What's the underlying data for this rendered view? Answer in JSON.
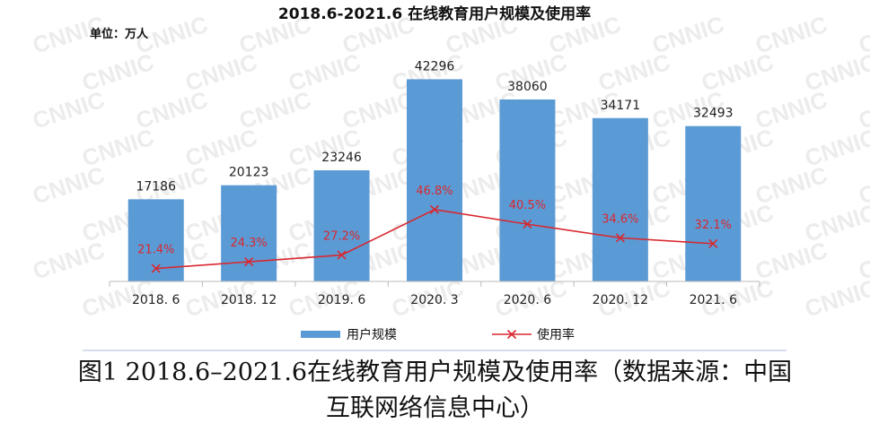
{
  "chart_data": {
    "type": "bar",
    "title": "2018.6-2021.6 在线教育用户规模及使用率",
    "unit_label": "单位：万人",
    "categories": [
      "2018. 6",
      "2018. 12",
      "2019. 6",
      "2020. 3",
      "2020. 6",
      "2020. 12",
      "2021. 6"
    ],
    "series": [
      {
        "name": "用户规模",
        "type": "bar",
        "values": [
          17186,
          20123,
          23246,
          42296,
          38060,
          34171,
          32493
        ],
        "labels": [
          "17186",
          "20123",
          "23246",
          "42296",
          "38060",
          "34171",
          "32493"
        ],
        "color": "#5b9bd5"
      },
      {
        "name": "使用率",
        "type": "line",
        "values": [
          21.4,
          24.3,
          27.2,
          46.8,
          40.5,
          34.6,
          32.1
        ],
        "labels": [
          "21.4%",
          "24.3%",
          "27.2%",
          "46.8%",
          "40.5%",
          "34.6%",
          "32.1%"
        ],
        "color": "#d8282f"
      }
    ],
    "ylim": [
      0,
      45000
    ],
    "rate_ylim": [
      0,
      100
    ],
    "grid": false,
    "legend_position": "bottom",
    "watermark": "CNNIC"
  },
  "caption": {
    "line1": "图1 2018.6–2021.6在线教育用户规模及使用率（数据来源：中国",
    "line2": "互联网络信息中心）"
  }
}
